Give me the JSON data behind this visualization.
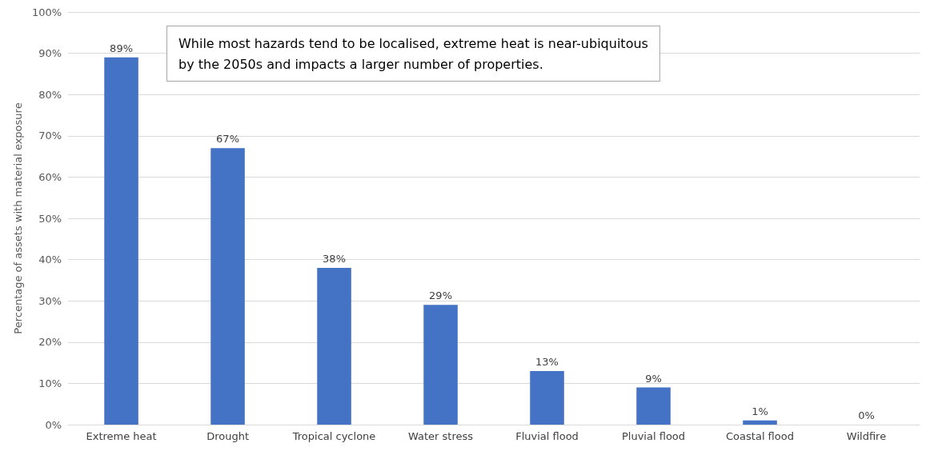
{
  "chart_data": {
    "type": "bar",
    "categories": [
      "Extreme heat",
      "Drought",
      "Tropical cyclone",
      "Water stress",
      "Fluvial flood",
      "Pluvial flood",
      "Coastal flood",
      "Wildfire"
    ],
    "values": [
      89,
      67,
      38,
      29,
      13,
      9,
      1,
      0
    ],
    "value_labels": [
      "89%",
      "67%",
      "38%",
      "29%",
      "13%",
      "9%",
      "1%",
      "0%"
    ],
    "color": "#4472c4",
    "ylabel": "Percentage of assets with material exposure",
    "ylim": [
      0,
      100
    ],
    "yticks": [
      {
        "value": 0,
        "label": "0%"
      },
      {
        "value": 10,
        "label": "10%"
      },
      {
        "value": 20,
        "label": "20%"
      },
      {
        "value": 30,
        "label": "30%"
      },
      {
        "value": 40,
        "label": "40%"
      },
      {
        "value": 50,
        "label": "50%"
      },
      {
        "value": 60,
        "label": "60%"
      },
      {
        "value": 70,
        "label": "70%"
      },
      {
        "value": 80,
        "label": "80%"
      },
      {
        "value": 90,
        "label": "90%"
      },
      {
        "value": 100,
        "label": "100%"
      }
    ],
    "grid": "y",
    "annotations": [
      "While most hazards tend to be localised, extreme heat is near-ubiquitous\nby the 2050s and impacts a larger number of properties."
    ]
  }
}
